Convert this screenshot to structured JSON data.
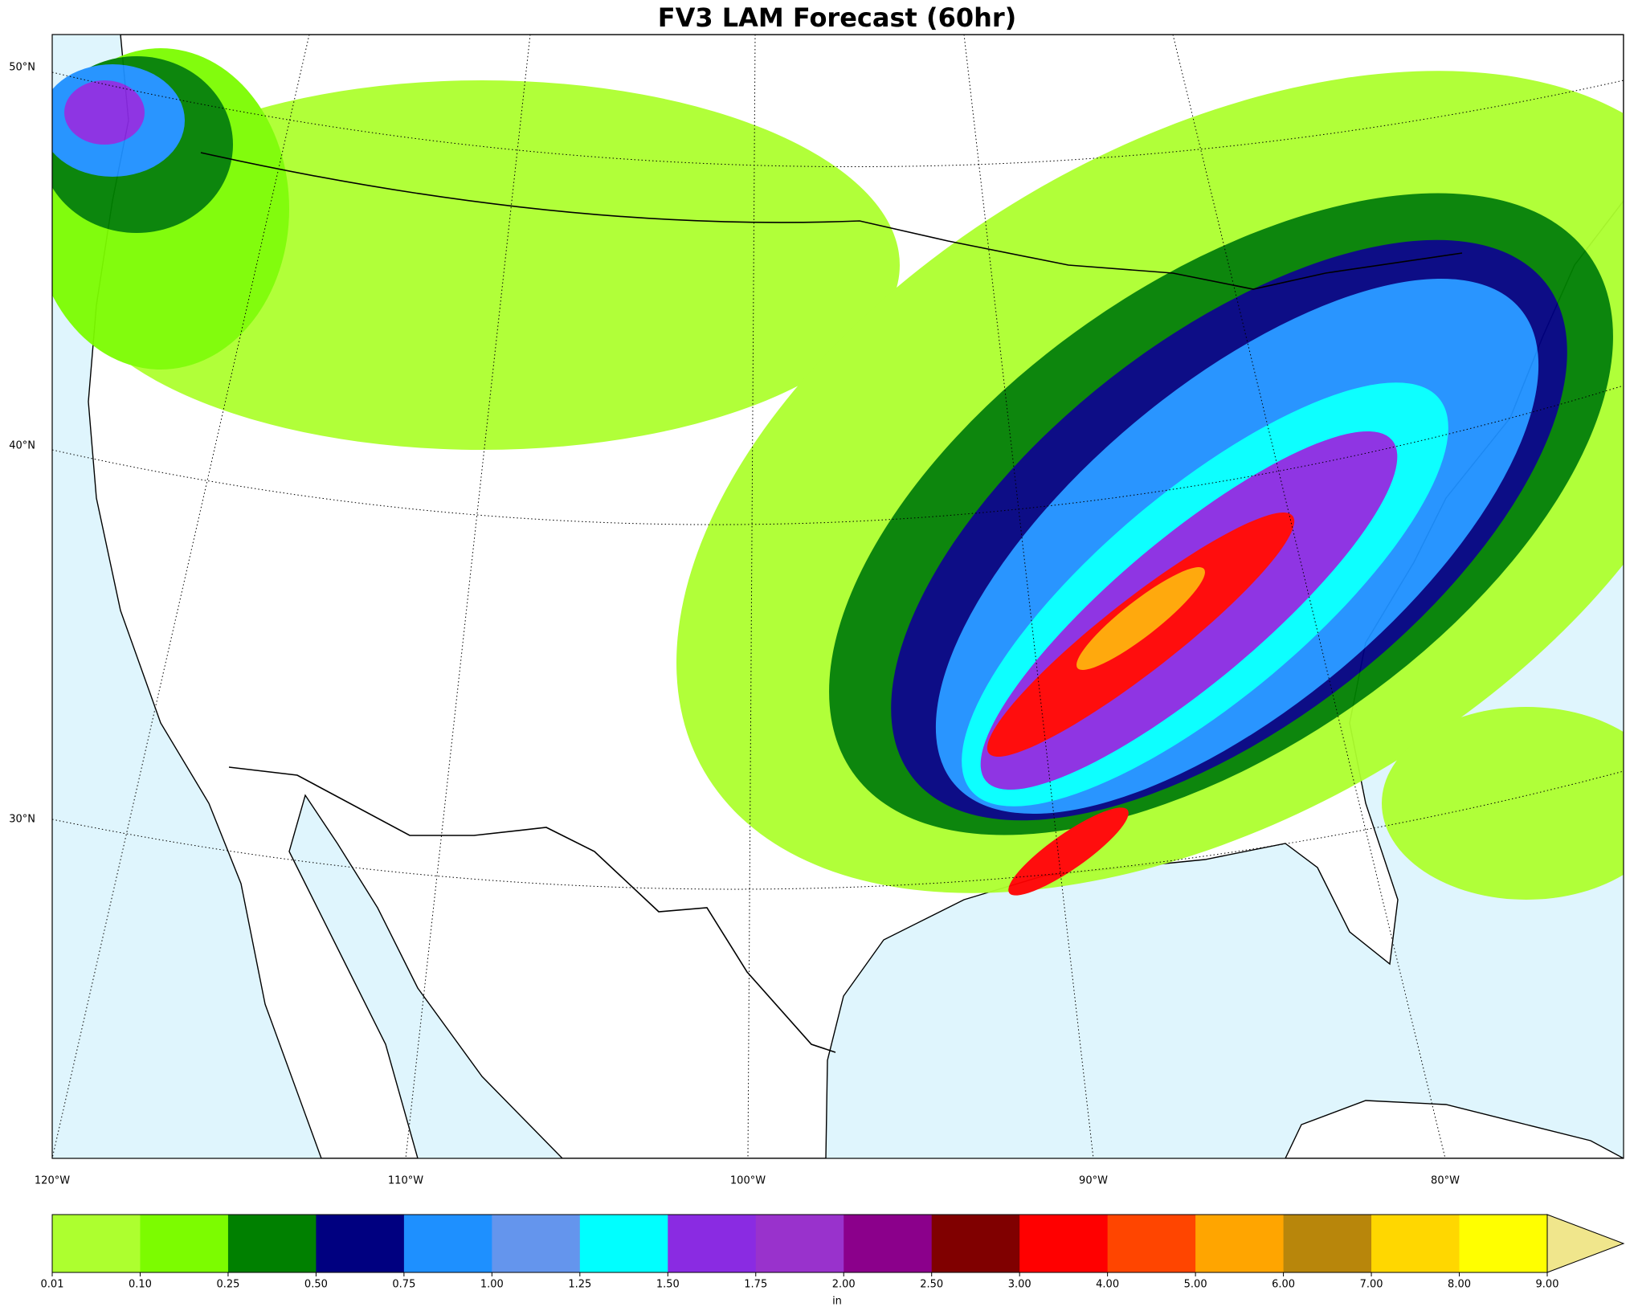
{
  "title": "FV3 LAM Forecast (60hr)",
  "map": {
    "lat_labels": [
      "50°N",
      "40°N",
      "30°N"
    ],
    "lon_labels": [
      "120°W",
      "110°W",
      "100°W",
      "90°W",
      "80°W"
    ]
  },
  "colorbar": {
    "colors": [
      "#adff2f",
      "#7cfc00",
      "#008000",
      "#000080",
      "#1e90ff",
      "#6495ed",
      "#00ffff",
      "#8a2be2",
      "#9932cc",
      "#8b008b",
      "#800000",
      "#ff0000",
      "#ff4500",
      "#ffa500",
      "#b8860b",
      "#ffd700",
      "#ffff00",
      "#f0e68c"
    ],
    "ticks": [
      0.01,
      {
        "value": 0.1,
        "label": "0.10"
      },
      0.25,
      {
        "value": 0.5,
        "label": "0.50"
      },
      0.75,
      {
        "value": 1,
        "label": "1.00"
      },
      1.25,
      {
        "value": 1.5,
        "label": "1.50"
      },
      1.75,
      {
        "value": 2,
        "label": "2.00"
      },
      {
        "value": 2.5,
        "label": "2.50"
      },
      {
        "value": 3,
        "label": "3.00"
      },
      {
        "value": 4,
        "label": "4.00"
      },
      {
        "value": 5,
        "label": "5.00"
      },
      {
        "value": 6,
        "label": "6.00"
      },
      {
        "value": 7,
        "label": "7.00"
      },
      {
        "value": 8,
        "label": "8.00"
      },
      {
        "value": 9,
        "label": "9.00"
      }
    ],
    "unit": "in"
  }
}
